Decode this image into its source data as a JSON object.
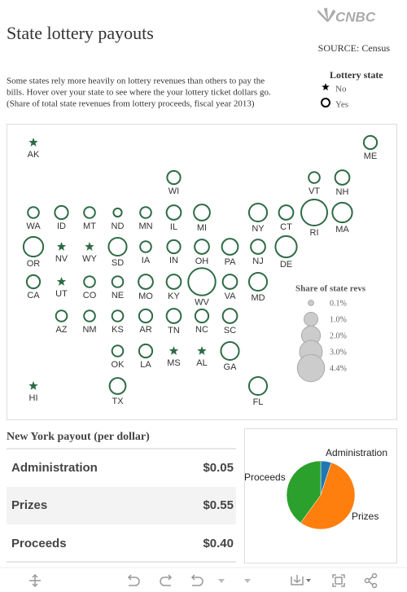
{
  "header": {
    "title": "State lottery payouts",
    "source": "SOURCE: Census",
    "logo": "CNBC",
    "description": [
      "Some states rely more heavily on lottery revenues than others to pay the",
      "bills. Hover over your state to see where the your lottery ticket dollars go.",
      "(Share of total state revenues from lottery proceeds, fiscal year 2013)"
    ]
  },
  "chart_data": [
    {
      "type": "tile-map",
      "categories": [
        "AK",
        "ME",
        "WI",
        "VT",
        "NH",
        "WA",
        "ID",
        "MT",
        "ND",
        "MN",
        "IL",
        "MI",
        "NY",
        "CT",
        "RI",
        "MA",
        "OR",
        "NV",
        "WY",
        "SD",
        "IA",
        "IN",
        "OH",
        "PA",
        "NJ",
        "DE",
        "CA",
        "UT",
        "CO",
        "NE",
        "MO",
        "KY",
        "WV",
        "VA",
        "MD",
        "AZ",
        "NM",
        "KS",
        "AR",
        "TN",
        "NC",
        "SC",
        "OK",
        "LA",
        "MS",
        "AL",
        "GA",
        "HI",
        "TX",
        "FL"
      ],
      "values": [
        null,
        0.9,
        0.9,
        0.6,
        1.1,
        0.6,
        0.9,
        0.6,
        0.3,
        0.6,
        1.1,
        1.4,
        1.8,
        1.1,
        4.0,
        2.2,
        2.2,
        null,
        null,
        1.8,
        0.6,
        0.9,
        1.1,
        1.4,
        1.1,
        2.6,
        0.9,
        null,
        0.6,
        0.6,
        1.1,
        1.1,
        4.4,
        1.1,
        1.8,
        0.6,
        0.6,
        0.6,
        0.9,
        1.1,
        0.9,
        1.1,
        0.6,
        0.9,
        null,
        null,
        1.8,
        null,
        1.4,
        1.8
      ],
      "color": "#2e6b45",
      "legend": {
        "title": "Lottery state",
        "entries": [
          "No",
          "Yes"
        ]
      },
      "size_legend": {
        "title": "Share of state revs",
        "color": "#cccccc",
        "ticks": [
          {
            "value": 0.1,
            "label": "0.1%"
          },
          {
            "value": 1.0,
            "label": "1.0%"
          },
          {
            "value": 2.0,
            "label": "2.0%"
          },
          {
            "value": 3.0,
            "label": "3.0%"
          },
          {
            "value": 4.4,
            "label": "4.4%"
          }
        ]
      }
    },
    {
      "type": "pie",
      "categories": [
        "Administration",
        "Prizes",
        "Proceeds"
      ],
      "values": [
        0.05,
        0.55,
        0.4
      ],
      "colors": [
        "#1f77b4",
        "#ff7f0e",
        "#2ca02c"
      ]
    }
  ],
  "table": {
    "title": "New York payout (per dollar)",
    "rows": [
      [
        "Administration",
        "$0.05"
      ],
      [
        "Prizes",
        "$0.55"
      ],
      [
        "Proceeds",
        "$0.40"
      ]
    ]
  }
}
